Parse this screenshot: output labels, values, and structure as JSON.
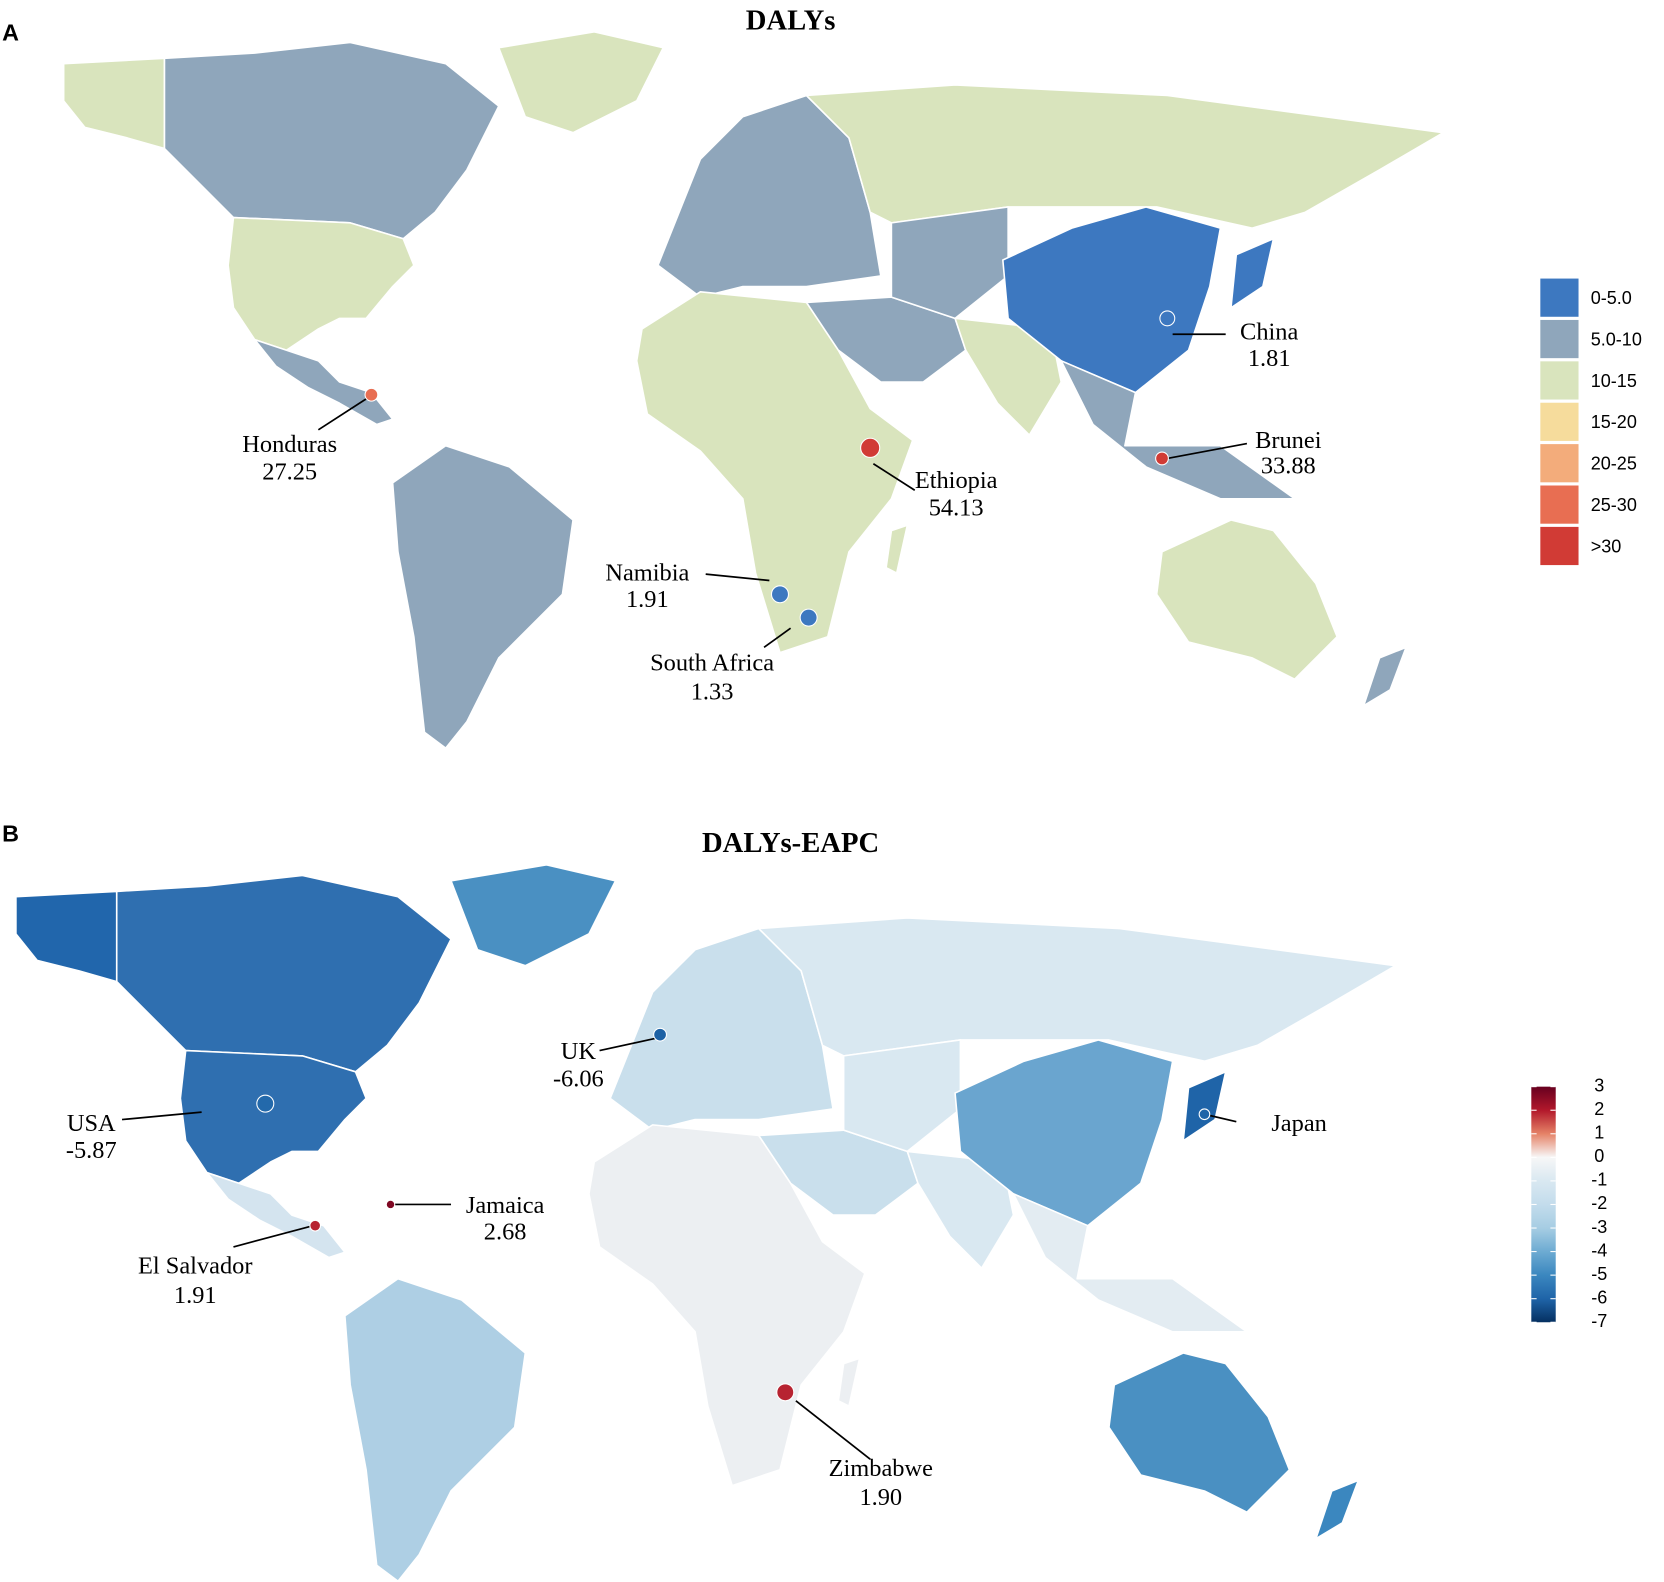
{
  "panels": [
    {
      "label": "A",
      "title": "DALYs",
      "legend": {
        "categories": [
          "0-5.0",
          "5.0-10",
          "10-15",
          "15-20",
          "20-25",
          "25-30",
          ">30"
        ],
        "colors": [
          "#3d78c0",
          "#8fa6bb",
          "#d9e4bd",
          "#f6dc9c",
          "#f3ac7b",
          "#e86e52",
          "#d13b35"
        ]
      },
      "annotations": [
        {
          "name": "China",
          "value": 1.81
        },
        {
          "name": "Brunei",
          "value": 33.88
        },
        {
          "name": "Ethiopia",
          "value": 54.13
        },
        {
          "name": "Honduras",
          "value": 27.25
        },
        {
          "name": "Namibia",
          "value": 1.91
        },
        {
          "name": "South Africa",
          "value": 1.33
        }
      ]
    },
    {
      "label": "B",
      "title": "DALYs-EAPC",
      "colorbar": {
        "lim": [
          -7,
          3
        ],
        "ticks": [
          3,
          2,
          1,
          0,
          -1,
          -2,
          -3,
          -4,
          -5,
          -6,
          -7
        ],
        "colors": [
          "#67001f",
          "#b2182b",
          "#e58267",
          "#f7f7f7",
          "#d9e8f1",
          "#c3dcec",
          "#a6cde3",
          "#6dabd2",
          "#3b87bf",
          "#1f64a8",
          "#053061"
        ]
      },
      "annotations": [
        {
          "name": "UK",
          "value": -6.06
        },
        {
          "name": "USA",
          "value": -5.87
        },
        {
          "name": "Jamaica",
          "value": 2.68
        },
        {
          "name": "El Salvador",
          "value": 1.91
        },
        {
          "name": "Zimbabwe",
          "value": 1.9,
          "value_label": "1.90"
        },
        {
          "name": "Japan"
        }
      ]
    }
  ]
}
